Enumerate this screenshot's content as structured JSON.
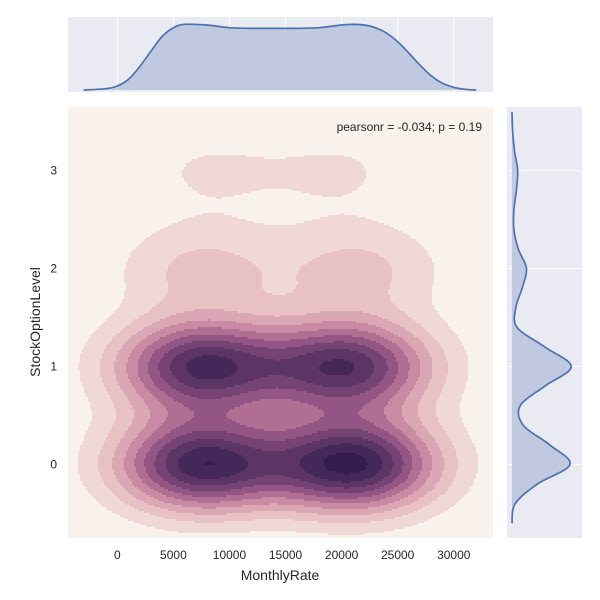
{
  "chart_data": {
    "type": "joint-kde",
    "xlabel": "MonthlyRate",
    "ylabel": "StockOptionLevel",
    "annotation": "pearsonr = -0.034; p = 0.19",
    "xlim": [
      -4400,
      33500
    ],
    "ylim": [
      -0.75,
      3.65
    ],
    "x_ticks": [
      0,
      5000,
      10000,
      15000,
      20000,
      25000,
      30000
    ],
    "x_tick_labels": [
      "0",
      "5000",
      "10000",
      "15000",
      "20000",
      "25000",
      "30000"
    ],
    "y_ticks": [
      0,
      1,
      2,
      3
    ],
    "y_tick_labels": [
      "0",
      "1",
      "2",
      "3"
    ],
    "joint_kde": {
      "components": [
        {
          "x_mean": 7500,
          "x_sd": 5200,
          "y": 0,
          "y_sd": 0.33,
          "weight": 0.55
        },
        {
          "x_mean": 21000,
          "x_sd": 5200,
          "y": 0,
          "y_sd": 0.33,
          "weight": 0.58
        },
        {
          "x_mean": 7500,
          "x_sd": 5200,
          "y": 1,
          "y_sd": 0.33,
          "weight": 0.52
        },
        {
          "x_mean": 20500,
          "x_sd": 5200,
          "y": 1,
          "y_sd": 0.33,
          "weight": 0.5
        },
        {
          "x_mean": 7500,
          "x_sd": 5200,
          "y": 2,
          "y_sd": 0.33,
          "weight": 0.13
        },
        {
          "x_mean": 21500,
          "x_sd": 5200,
          "y": 2,
          "y_sd": 0.33,
          "weight": 0.13
        },
        {
          "x_mean": 8000,
          "x_sd": 5200,
          "y": 3,
          "y_sd": 0.33,
          "weight": 0.06
        },
        {
          "x_mean": 20000,
          "x_sd": 5200,
          "y": 3,
          "y_sd": 0.33,
          "weight": 0.06
        }
      ],
      "palette": [
        "#f8f1ec",
        "#f0d8d6",
        "#e8c1c5",
        "#dca7b4",
        "#c98aa3",
        "#b06e93",
        "#935684",
        "#764375",
        "#5c3466",
        "#45285a",
        "#341d4d"
      ]
    },
    "x_marginal": {
      "x": [
        -3000,
        -1000,
        0,
        1000,
        2000,
        3000,
        4000,
        5000,
        6000,
        8000,
        10000,
        12000,
        14000,
        16000,
        18000,
        20000,
        21000,
        22000,
        23000,
        24000,
        25000,
        26000,
        27000,
        28000,
        29000,
        30000,
        31000,
        32000
      ],
      "density": [
        0.0,
        0.02,
        0.06,
        0.16,
        0.35,
        0.58,
        0.8,
        0.93,
        0.98,
        0.97,
        0.93,
        0.92,
        0.92,
        0.92,
        0.93,
        0.97,
        0.98,
        0.97,
        0.93,
        0.85,
        0.72,
        0.55,
        0.37,
        0.21,
        0.1,
        0.04,
        0.01,
        0.0
      ]
    },
    "y_marginal": {
      "y": [
        -0.6,
        -0.4,
        -0.2,
        0.0,
        0.2,
        0.4,
        0.6,
        0.8,
        1.0,
        1.2,
        1.4,
        1.6,
        1.8,
        2.0,
        2.2,
        2.4,
        2.6,
        2.8,
        3.0,
        3.2,
        3.4,
        3.6
      ],
      "density": [
        0.0,
        0.05,
        0.4,
        0.92,
        0.6,
        0.18,
        0.13,
        0.52,
        0.94,
        0.52,
        0.08,
        0.06,
        0.16,
        0.23,
        0.1,
        0.03,
        0.03,
        0.07,
        0.09,
        0.04,
        0.01,
        0.0
      ]
    },
    "grid": true,
    "colors": {
      "panel_bg": "#eaeaf2",
      "grid": "#ffffff",
      "marginal_line": "#4c72b0",
      "marginal_fill": "#c1c9e0",
      "text": "#262626"
    }
  }
}
